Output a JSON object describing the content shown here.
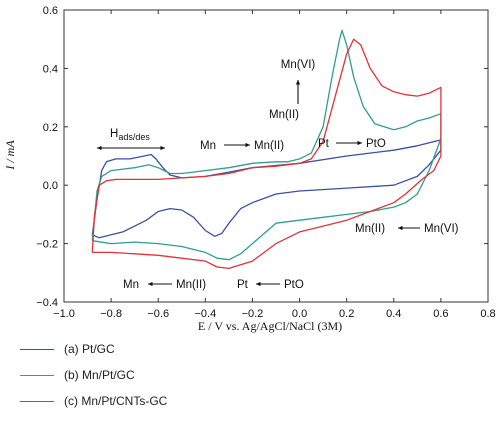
{
  "chart_data": {
    "type": "line",
    "xlabel": "E / V vs. Ag/AgCl/NaCl (3M)",
    "ylabel": "I / mA",
    "xlim": [
      -1.0,
      0.8
    ],
    "ylim": [
      -0.4,
      0.6
    ],
    "xticks": [
      "−1.0",
      "−0.8",
      "−0.6",
      "−0.4",
      "−0.2",
      "0.0",
      "0.2",
      "0.4",
      "0.6",
      "0.8"
    ],
    "yticks": [
      "−0.4",
      "−0.2",
      "0.0",
      "0.2",
      "0.4",
      "0.6"
    ],
    "grid": false,
    "legend_position": "below",
    "series": [
      {
        "name": "(a) Pt/GC",
        "color": "#3b4fa8",
        "points": [
          [
            -0.88,
            -0.17
          ],
          [
            -0.86,
            -0.05
          ],
          [
            -0.84,
            0.05
          ],
          [
            -0.82,
            0.08
          ],
          [
            -0.78,
            0.09
          ],
          [
            -0.72,
            0.09
          ],
          [
            -0.66,
            0.1
          ],
          [
            -0.63,
            0.105
          ],
          [
            -0.61,
            0.09
          ],
          [
            -0.58,
            0.06
          ],
          [
            -0.55,
            0.035
          ],
          [
            -0.5,
            0.025
          ],
          [
            -0.4,
            0.03
          ],
          [
            -0.3,
            0.045
          ],
          [
            -0.2,
            0.06
          ],
          [
            0.0,
            0.075
          ],
          [
            0.2,
            0.1
          ],
          [
            0.4,
            0.12
          ],
          [
            0.5,
            0.135
          ],
          [
            0.6,
            0.155
          ],
          [
            0.6,
            0.12
          ],
          [
            0.55,
            0.07
          ],
          [
            0.5,
            0.03
          ],
          [
            0.4,
            0.0
          ],
          [
            0.2,
            -0.01
          ],
          [
            0.0,
            -0.02
          ],
          [
            -0.1,
            -0.03
          ],
          [
            -0.2,
            -0.06
          ],
          [
            -0.25,
            -0.08
          ],
          [
            -0.3,
            -0.13
          ],
          [
            -0.33,
            -0.165
          ],
          [
            -0.36,
            -0.175
          ],
          [
            -0.4,
            -0.155
          ],
          [
            -0.45,
            -0.11
          ],
          [
            -0.5,
            -0.085
          ],
          [
            -0.55,
            -0.08
          ],
          [
            -0.6,
            -0.09
          ],
          [
            -0.65,
            -0.12
          ],
          [
            -0.7,
            -0.14
          ],
          [
            -0.75,
            -0.16
          ],
          [
            -0.8,
            -0.17
          ],
          [
            -0.85,
            -0.18
          ],
          [
            -0.88,
            -0.17
          ]
        ]
      },
      {
        "name": "(b) Mn/Pt/GC",
        "color": "#2e9e8f",
        "points": [
          [
            -0.88,
            -0.19
          ],
          [
            -0.86,
            -0.02
          ],
          [
            -0.84,
            0.03
          ],
          [
            -0.8,
            0.05
          ],
          [
            -0.75,
            0.055
          ],
          [
            -0.7,
            0.06
          ],
          [
            -0.64,
            0.07
          ],
          [
            -0.6,
            0.06
          ],
          [
            -0.55,
            0.04
          ],
          [
            -0.5,
            0.04
          ],
          [
            -0.4,
            0.05
          ],
          [
            -0.3,
            0.06
          ],
          [
            -0.2,
            0.075
          ],
          [
            -0.1,
            0.08
          ],
          [
            -0.05,
            0.08
          ],
          [
            0.0,
            0.09
          ],
          [
            0.05,
            0.11
          ],
          [
            0.1,
            0.2
          ],
          [
            0.14,
            0.38
          ],
          [
            0.17,
            0.5
          ],
          [
            0.18,
            0.53
          ],
          [
            0.2,
            0.48
          ],
          [
            0.23,
            0.37
          ],
          [
            0.27,
            0.27
          ],
          [
            0.32,
            0.21
          ],
          [
            0.4,
            0.19
          ],
          [
            0.45,
            0.2
          ],
          [
            0.5,
            0.22
          ],
          [
            0.55,
            0.23
          ],
          [
            0.6,
            0.245
          ],
          [
            0.6,
            0.16
          ],
          [
            0.55,
            0.05
          ],
          [
            0.5,
            -0.03
          ],
          [
            0.45,
            -0.06
          ],
          [
            0.4,
            -0.075
          ],
          [
            0.3,
            -0.09
          ],
          [
            0.2,
            -0.1
          ],
          [
            0.1,
            -0.11
          ],
          [
            0.0,
            -0.12
          ],
          [
            -0.1,
            -0.13
          ],
          [
            -0.2,
            -0.2
          ],
          [
            -0.25,
            -0.235
          ],
          [
            -0.3,
            -0.255
          ],
          [
            -0.35,
            -0.25
          ],
          [
            -0.4,
            -0.23
          ],
          [
            -0.5,
            -0.21
          ],
          [
            -0.6,
            -0.2
          ],
          [
            -0.7,
            -0.195
          ],
          [
            -0.8,
            -0.2
          ],
          [
            -0.88,
            -0.19
          ]
        ]
      },
      {
        "name": "(c) Mn/Pt/CNTs-GC",
        "color": "#e0333a",
        "points": [
          [
            -0.88,
            -0.23
          ],
          [
            -0.87,
            -0.1
          ],
          [
            -0.85,
            0.0
          ],
          [
            -0.82,
            0.015
          ],
          [
            -0.78,
            0.02
          ],
          [
            -0.7,
            0.02
          ],
          [
            -0.6,
            0.02
          ],
          [
            -0.5,
            0.025
          ],
          [
            -0.4,
            0.03
          ],
          [
            -0.3,
            0.04
          ],
          [
            -0.2,
            0.06
          ],
          [
            -0.1,
            0.065
          ],
          [
            0.0,
            0.075
          ],
          [
            0.05,
            0.09
          ],
          [
            0.1,
            0.15
          ],
          [
            0.15,
            0.3
          ],
          [
            0.2,
            0.45
          ],
          [
            0.23,
            0.5
          ],
          [
            0.26,
            0.48
          ],
          [
            0.3,
            0.4
          ],
          [
            0.35,
            0.34
          ],
          [
            0.4,
            0.32
          ],
          [
            0.45,
            0.31
          ],
          [
            0.5,
            0.305
          ],
          [
            0.55,
            0.315
          ],
          [
            0.6,
            0.335
          ],
          [
            0.6,
            0.1
          ],
          [
            0.57,
            0.05
          ],
          [
            0.52,
            0.02
          ],
          [
            0.45,
            -0.03
          ],
          [
            0.4,
            -0.06
          ],
          [
            0.3,
            -0.09
          ],
          [
            0.2,
            -0.12
          ],
          [
            0.1,
            -0.14
          ],
          [
            0.0,
            -0.16
          ],
          [
            -0.1,
            -0.2
          ],
          [
            -0.2,
            -0.26
          ],
          [
            -0.3,
            -0.285
          ],
          [
            -0.35,
            -0.28
          ],
          [
            -0.4,
            -0.26
          ],
          [
            -0.5,
            -0.25
          ],
          [
            -0.6,
            -0.24
          ],
          [
            -0.7,
            -0.235
          ],
          [
            -0.8,
            -0.23
          ],
          [
            -0.88,
            -0.23
          ]
        ]
      }
    ],
    "annotations": {
      "hads": "H",
      "hads_sub": "ads/des",
      "mn_vi": "Mn(VI)",
      "mn_ii_top": "Mn(II)",
      "mn_left": "Mn",
      "mn_ii_mid": "Mn(II)",
      "pt_top": "Pt",
      "pto_top": "PtO",
      "mn_ii_right": "Mn(II)",
      "mn_vi_right": "Mn(VI)",
      "mn_bottom": "Mn",
      "mn_ii_bottom": "Mn(II)",
      "pt_bottom": "Pt",
      "pto_bottom": "PtO"
    }
  }
}
